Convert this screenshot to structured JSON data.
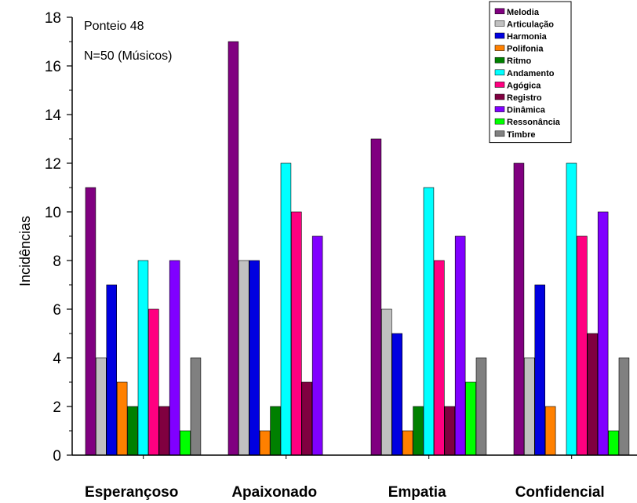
{
  "chart_data": {
    "type": "bar",
    "categories": [
      "Esperançoso",
      "Apaixonado",
      "Empatia",
      "Confidencial"
    ],
    "ylabel": "Incidências",
    "xlabel": "",
    "ylim": [
      0,
      18
    ],
    "yticks": [
      0,
      2,
      4,
      6,
      8,
      10,
      12,
      14,
      16,
      18
    ],
    "annotations": [
      "Ponteio 48",
      "N=50 (Músicos)"
    ],
    "legend_position": "top-right",
    "grid": false,
    "series": [
      {
        "name": "Melodia",
        "color": "#800080",
        "values": [
          11,
          17,
          13,
          12
        ]
      },
      {
        "name": "Articulação",
        "color": "#c0c0c0",
        "values": [
          4,
          8,
          6,
          4
        ]
      },
      {
        "name": "Harmonia",
        "color": "#0000e0",
        "values": [
          7,
          8,
          5,
          7
        ]
      },
      {
        "name": "Polifonia",
        "color": "#ff8000",
        "values": [
          3,
          1,
          1,
          2
        ]
      },
      {
        "name": "Ritmo",
        "color": "#008000",
        "values": [
          2,
          2,
          2,
          0
        ]
      },
      {
        "name": "Andamento",
        "color": "#00ffff",
        "values": [
          8,
          12,
          11,
          12
        ]
      },
      {
        "name": "Agógica",
        "color": "#ff0080",
        "values": [
          6,
          10,
          8,
          9
        ]
      },
      {
        "name": "Registro",
        "color": "#800040",
        "values": [
          2,
          3,
          2,
          5
        ]
      },
      {
        "name": "Dinâmica",
        "color": "#8000ff",
        "values": [
          8,
          9,
          9,
          10
        ]
      },
      {
        "name": "Ressonância",
        "color": "#00ff00",
        "values": [
          1,
          0,
          3,
          1
        ]
      },
      {
        "name": "Timbre",
        "color": "#808080",
        "values": [
          4,
          0,
          4,
          4
        ]
      }
    ]
  }
}
